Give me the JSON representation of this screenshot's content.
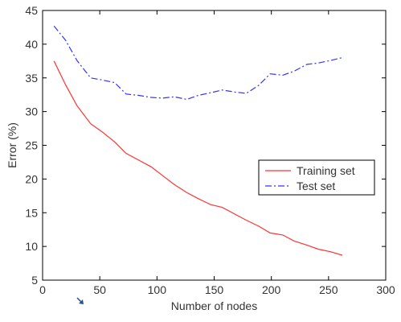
{
  "chart_data": {
    "type": "line",
    "title": "",
    "xlabel": "Number of nodes",
    "ylabel": "Error (%)",
    "xlim": [
      0,
      300
    ],
    "ylim": [
      5,
      45
    ],
    "xticks": [
      0,
      50,
      100,
      150,
      200,
      250,
      300
    ],
    "yticks": [
      5,
      10,
      15,
      20,
      25,
      30,
      35,
      40,
      45
    ],
    "grid": false,
    "legend_position": "center-right",
    "series": [
      {
        "name": "Training set",
        "color": "#ff3333",
        "style": "solid",
        "x": [
          10,
          20,
          30,
          42,
          52,
          63,
          73,
          84,
          95,
          105,
          115,
          126,
          136,
          147,
          157,
          168,
          178,
          189,
          199,
          210,
          220,
          231,
          241,
          252,
          262
        ],
        "y": [
          37.5,
          34.0,
          30.9,
          28.2,
          27.0,
          25.5,
          23.8,
          22.8,
          21.8,
          20.5,
          19.2,
          18.0,
          17.1,
          16.2,
          15.8,
          14.8,
          13.9,
          13.0,
          12.0,
          11.7,
          10.8,
          10.2,
          9.6,
          9.2,
          8.7
        ]
      },
      {
        "name": "Test set",
        "color": "#3333ff",
        "style": "dashdot",
        "x": [
          10,
          20,
          30,
          42,
          52,
          63,
          73,
          84,
          95,
          105,
          115,
          126,
          136,
          147,
          157,
          168,
          178,
          189,
          199,
          210,
          220,
          231,
          241,
          252,
          262
        ],
        "y": [
          42.7,
          40.6,
          37.6,
          35.0,
          34.7,
          34.3,
          32.6,
          32.4,
          32.1,
          32.0,
          32.2,
          31.8,
          32.4,
          32.8,
          33.2,
          32.9,
          32.7,
          33.9,
          35.6,
          35.4,
          36.0,
          37.0,
          37.2,
          37.6,
          38.0
        ]
      }
    ]
  }
}
